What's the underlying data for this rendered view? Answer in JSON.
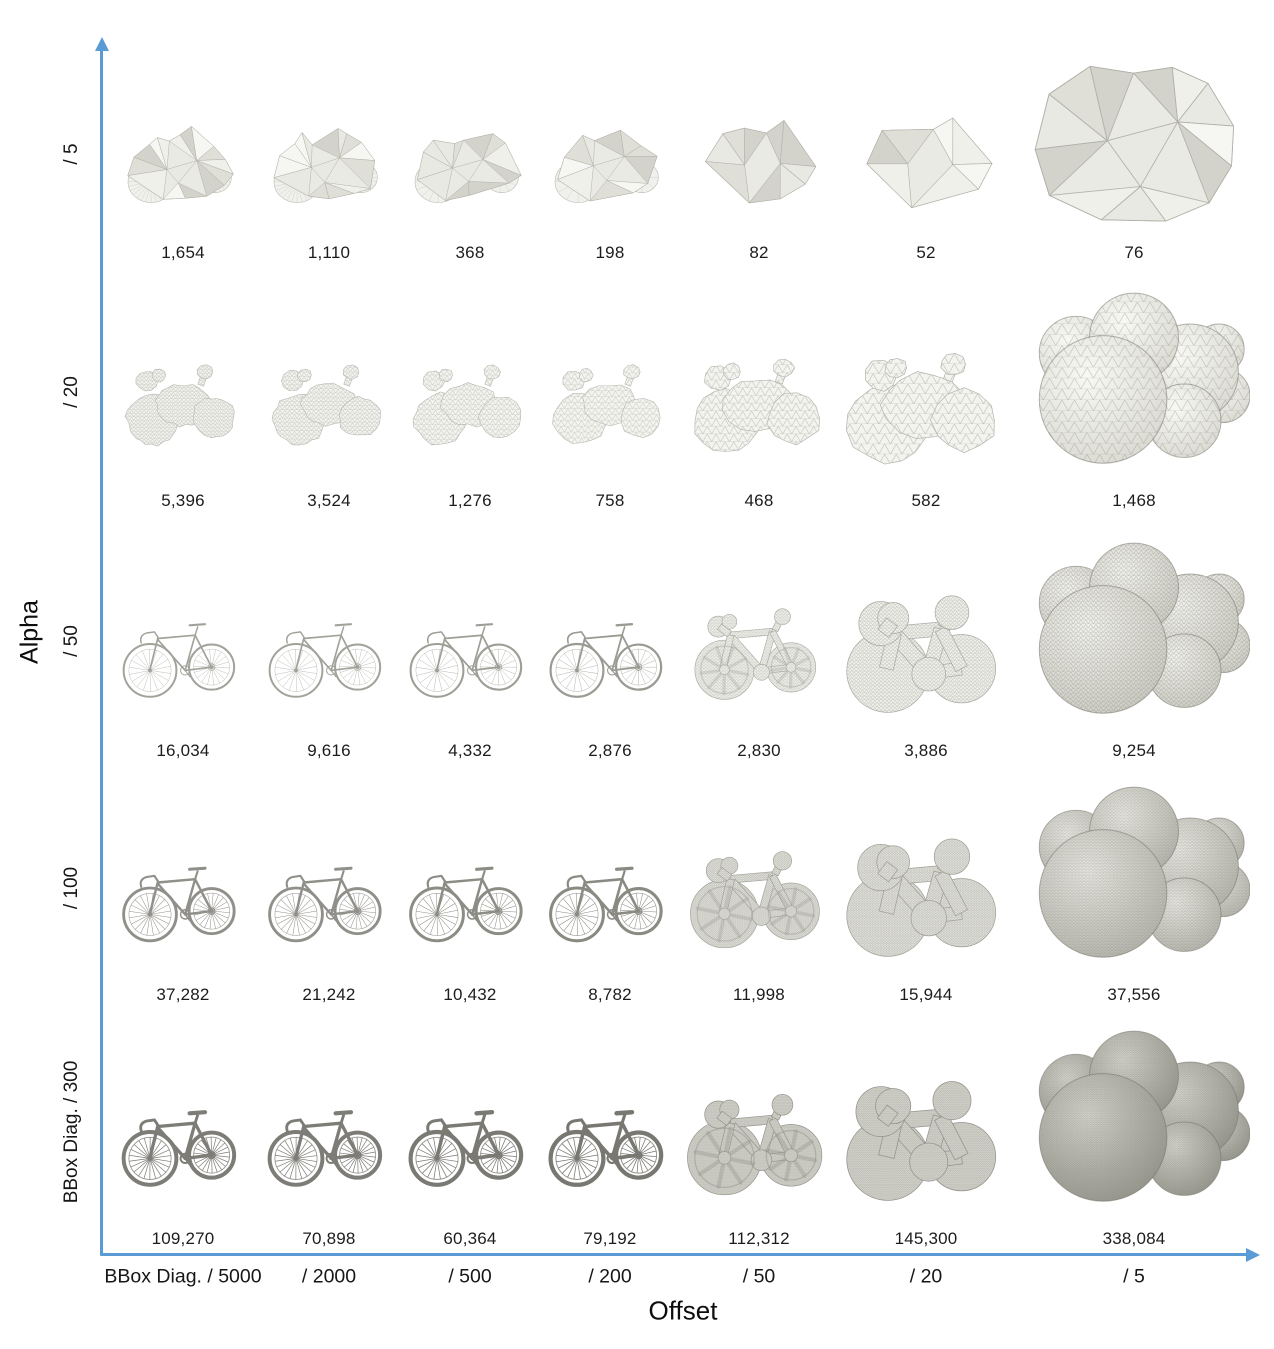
{
  "figure": {
    "y_axis": {
      "title": "Alpha",
      "tick_labels": [
        "/ 5",
        "/ 20",
        "/ 50",
        "/ 100",
        "BBox Diag. / 300"
      ],
      "axis_color": "#5b9bd5"
    },
    "x_axis": {
      "title": "Offset",
      "tick_labels": [
        "BBox Diag. / 5000",
        "/ 2000",
        "/ 500",
        "/ 200",
        "/ 50",
        "/ 20",
        "/ 5"
      ],
      "axis_color": "#5b9bd5"
    },
    "rows": [
      {
        "label": "/ 5",
        "cells": [
          {
            "count": "1,654",
            "mesh": "coarse-alpha-wrap-bicycle-mesh"
          },
          {
            "count": "1,110",
            "mesh": "coarse-alpha-wrap-bicycle-mesh"
          },
          {
            "count": "368",
            "mesh": "coarse-alpha-wrap-bicycle-mesh"
          },
          {
            "count": "198",
            "mesh": "coarse-alpha-wrap-bicycle-mesh"
          },
          {
            "count": "82",
            "mesh": "coarse-alpha-wrap-blob-mesh"
          },
          {
            "count": "52",
            "mesh": "coarse-alpha-wrap-blob-mesh"
          },
          {
            "count": "76",
            "mesh": "coarse-polyhedron-mesh"
          }
        ]
      },
      {
        "label": "/ 20",
        "cells": [
          {
            "count": "5,396",
            "mesh": "lumpy-alpha-wrap-bicycle-mesh"
          },
          {
            "count": "3,524",
            "mesh": "lumpy-alpha-wrap-bicycle-mesh"
          },
          {
            "count": "1,276",
            "mesh": "lumpy-alpha-wrap-bicycle-mesh"
          },
          {
            "count": "758",
            "mesh": "lumpy-alpha-wrap-bicycle-mesh"
          },
          {
            "count": "468",
            "mesh": "lumpy-alpha-wrap-bicycle-mesh"
          },
          {
            "count": "582",
            "mesh": "lumpy-alpha-wrap-bicycle-mesh"
          },
          {
            "count": "1,468",
            "mesh": "coarse-ball-cluster-mesh"
          }
        ]
      },
      {
        "label": "/ 50",
        "cells": [
          {
            "count": "16,034",
            "mesh": "meshed-bicycle"
          },
          {
            "count": "9,616",
            "mesh": "meshed-bicycle"
          },
          {
            "count": "4,332",
            "mesh": "meshed-bicycle"
          },
          {
            "count": "2,876",
            "mesh": "meshed-bicycle"
          },
          {
            "count": "2,830",
            "mesh": "blobby-bicycle-mesh"
          },
          {
            "count": "3,886",
            "mesh": "blobby-bicycle-mesh"
          },
          {
            "count": "9,254",
            "mesh": "ball-cluster-mesh"
          }
        ]
      },
      {
        "label": "/ 100",
        "cells": [
          {
            "count": "37,282",
            "mesh": "fine-bicycle-mesh"
          },
          {
            "count": "21,242",
            "mesh": "fine-bicycle-mesh"
          },
          {
            "count": "10,432",
            "mesh": "fine-bicycle-mesh"
          },
          {
            "count": "8,782",
            "mesh": "fine-bicycle-mesh"
          },
          {
            "count": "11,998",
            "mesh": "blobby-bicycle-mesh"
          },
          {
            "count": "15,944",
            "mesh": "blobby-bicycle-mesh"
          },
          {
            "count": "37,556",
            "mesh": "ball-cluster-mesh"
          }
        ]
      },
      {
        "label": "BBox Diag. / 300",
        "cells": [
          {
            "count": "109,270",
            "mesh": "fine-bicycle-mesh"
          },
          {
            "count": "70,898",
            "mesh": "fine-bicycle-mesh"
          },
          {
            "count": "60,364",
            "mesh": "fine-bicycle-mesh"
          },
          {
            "count": "79,192",
            "mesh": "fine-bicycle-mesh"
          },
          {
            "count": "112,312",
            "mesh": "blobby-bicycle-mesh"
          },
          {
            "count": "145,300",
            "mesh": "blobby-bicycle-mesh"
          },
          {
            "count": "338,084",
            "mesh": "dense-ball-cluster-mesh"
          }
        ]
      }
    ]
  },
  "chart_data": {
    "type": "heatmap",
    "title": "",
    "xlabel": "Offset",
    "ylabel": "Alpha",
    "x_categories": [
      "BBox Diag. / 5000",
      "/ 2000",
      "/ 500",
      "/ 200",
      "/ 50",
      "/ 20",
      "/ 5"
    ],
    "y_categories": [
      "/ 5",
      "/ 20",
      "/ 50",
      "/ 100",
      "BBox Diag. / 300"
    ],
    "values_note": "triangle face count of each alpha-wrap result",
    "values": [
      [
        1654,
        1110,
        368,
        198,
        82,
        52,
        76
      ],
      [
        5396,
        3524,
        1276,
        758,
        468,
        582,
        1468
      ],
      [
        16034,
        9616,
        4332,
        2876,
        2830,
        3886,
        9254
      ],
      [
        37282,
        21242,
        10432,
        8782,
        11998,
        15944,
        37556
      ],
      [
        109270,
        70898,
        60364,
        79192,
        112312,
        145300,
        338084
      ]
    ],
    "legend_position": "none",
    "grid": false
  }
}
